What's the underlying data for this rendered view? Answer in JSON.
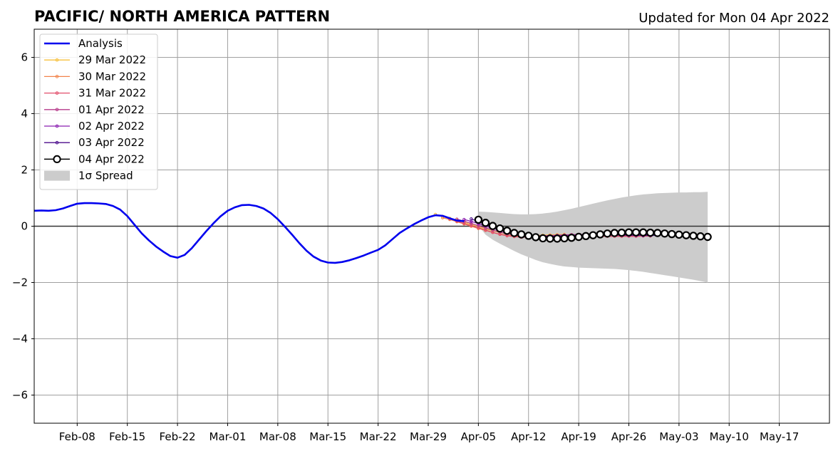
{
  "chart_data": {
    "type": "line",
    "title": "PACIFIC/ NORTH AMERICA PATTERN",
    "subtitle": "Updated for Mon 04 Apr 2022",
    "xlabel": "",
    "ylabel": "",
    "xlim": [
      "2022-02-02",
      "2022-05-24"
    ],
    "ylim": [
      -7,
      7
    ],
    "x_ticks": [
      {
        "date": "2022-02-08",
        "label": "Feb-08"
      },
      {
        "date": "2022-02-15",
        "label": "Feb-15"
      },
      {
        "date": "2022-02-22",
        "label": "Feb-22"
      },
      {
        "date": "2022-03-01",
        "label": "Mar-01"
      },
      {
        "date": "2022-03-08",
        "label": "Mar-08"
      },
      {
        "date": "2022-03-15",
        "label": "Mar-15"
      },
      {
        "date": "2022-03-22",
        "label": "Mar-22"
      },
      {
        "date": "2022-03-29",
        "label": "Mar-29"
      },
      {
        "date": "2022-04-05",
        "label": "Apr-05"
      },
      {
        "date": "2022-04-12",
        "label": "Apr-12"
      },
      {
        "date": "2022-04-19",
        "label": "Apr-19"
      },
      {
        "date": "2022-04-26",
        "label": "Apr-26"
      },
      {
        "date": "2022-05-03",
        "label": "May-03"
      },
      {
        "date": "2022-05-10",
        "label": "May-10"
      },
      {
        "date": "2022-05-17",
        "label": "May-17"
      }
    ],
    "y_ticks": [
      {
        "value": 6,
        "label": "6"
      },
      {
        "value": 4,
        "label": "4"
      },
      {
        "value": 2,
        "label": "2"
      },
      {
        "value": 0,
        "label": "0"
      },
      {
        "value": -2,
        "label": "−2"
      },
      {
        "value": -4,
        "label": "−4"
      },
      {
        "value": -6,
        "label": "−6"
      }
    ],
    "grid": true,
    "zero_line": true,
    "legend_position": "top-left",
    "analysis": {
      "name": "Analysis",
      "color": "#0000ee",
      "start": "2022-02-02",
      "values": [
        0.55,
        0.56,
        0.55,
        0.57,
        0.63,
        0.72,
        0.8,
        0.82,
        0.82,
        0.81,
        0.79,
        0.72,
        0.59,
        0.36,
        0.05,
        -0.25,
        -0.5,
        -0.72,
        -0.9,
        -1.06,
        -1.12,
        -1.02,
        -0.78,
        -0.48,
        -0.18,
        0.1,
        0.35,
        0.55,
        0.67,
        0.75,
        0.76,
        0.72,
        0.63,
        0.47,
        0.25,
        -0.02,
        -0.3,
        -0.6,
        -0.87,
        -1.08,
        -1.22,
        -1.29,
        -1.3,
        -1.27,
        -1.21,
        -1.13,
        -1.04,
        -0.94,
        -0.84,
        -0.68,
        -0.46,
        -0.24,
        -0.08,
        0.07,
        0.2,
        0.32,
        0.39,
        0.37,
        0.28,
        0.2,
        0.18
      ]
    },
    "series": [
      {
        "name": "29 Mar 2022",
        "color": "#f7c03c",
        "start": "2022-03-30",
        "values": [
          0.42,
          0.35,
          0.28,
          0.22,
          0.14,
          0.06,
          -0.02,
          -0.1,
          -0.16,
          -0.22,
          -0.27,
          -0.3,
          -0.32,
          -0.33,
          -0.33,
          -0.32,
          -0.31,
          -0.3,
          -0.29
        ]
      },
      {
        "name": "30 Mar 2022",
        "color": "#f2844b",
        "start": "2022-03-31",
        "values": [
          0.3,
          0.24,
          0.16,
          0.08,
          0.0,
          -0.08,
          -0.15,
          -0.22,
          -0.28,
          -0.32,
          -0.35,
          -0.37,
          -0.38,
          -0.37,
          -0.36,
          -0.35,
          -0.34,
          -0.33,
          -0.32
        ]
      },
      {
        "name": "31 Mar 2022",
        "color": "#e24d6a",
        "start": "2022-04-01",
        "values": [
          0.26,
          0.18,
          0.1,
          0.02,
          -0.06,
          -0.14,
          -0.22,
          -0.29,
          -0.34,
          -0.37,
          -0.39,
          -0.39,
          -0.38,
          -0.37,
          -0.36,
          -0.35,
          -0.34,
          -0.34,
          -0.34,
          -0.35,
          -0.35,
          -0.36,
          -0.36,
          -0.36,
          -0.36,
          -0.36,
          -0.36,
          -0.35,
          -0.35
        ]
      },
      {
        "name": "01 Apr 2022",
        "color": "#b63a8a",
        "start": "2022-04-02",
        "values": [
          0.25,
          0.18,
          0.1,
          0.02,
          -0.06,
          -0.14,
          -0.21,
          -0.27,
          -0.31,
          -0.34,
          -0.35,
          -0.35,
          -0.34,
          -0.33,
          -0.32,
          -0.31,
          -0.3,
          -0.29,
          -0.29,
          -0.29,
          -0.3,
          -0.31,
          -0.32,
          -0.33,
          -0.33,
          -0.33,
          -0.33,
          -0.33
        ]
      },
      {
        "name": "02 Apr 2022",
        "color": "#8a1fb0",
        "start": "2022-04-03",
        "values": [
          0.24,
          0.17,
          0.09,
          0.01,
          -0.07,
          -0.15,
          -0.22,
          -0.28,
          -0.32,
          -0.35,
          -0.36,
          -0.36,
          -0.35,
          -0.34,
          -0.33,
          -0.32,
          -0.31,
          -0.3,
          -0.3,
          -0.3,
          -0.3,
          -0.31,
          -0.31,
          -0.32,
          -0.32,
          -0.32,
          -0.32
        ]
      },
      {
        "name": "03 Apr 2022",
        "color": "#4b0c8c",
        "start": "2022-04-04",
        "values": [
          0.26,
          0.16,
          0.07,
          -0.02,
          -0.1,
          -0.17,
          -0.23,
          -0.28,
          -0.32,
          -0.35,
          -0.36,
          -0.37,
          -0.37,
          -0.36,
          -0.35,
          -0.34,
          -0.33,
          -0.32,
          -0.31,
          -0.31,
          -0.31,
          -0.31,
          -0.32,
          -0.32,
          -0.33,
          -0.33,
          -0.33
        ]
      },
      {
        "name": "04 Apr 2022",
        "color": "#000000",
        "marker": "open-circle",
        "start": "2022-04-05",
        "values": [
          0.23,
          0.12,
          0.01,
          -0.08,
          -0.16,
          -0.24,
          -0.29,
          -0.34,
          -0.39,
          -0.43,
          -0.44,
          -0.44,
          -0.43,
          -0.41,
          -0.38,
          -0.35,
          -0.32,
          -0.29,
          -0.26,
          -0.24,
          -0.23,
          -0.22,
          -0.22,
          -0.22,
          -0.23,
          -0.24,
          -0.26,
          -0.28,
          -0.3,
          -0.32,
          -0.34,
          -0.36,
          -0.38
        ]
      }
    ],
    "spread": {
      "name": "1σ Spread",
      "color": "#cccccc",
      "start": "2022-04-05",
      "upper": [
        0.52,
        0.51,
        0.49,
        0.47,
        0.45,
        0.43,
        0.42,
        0.42,
        0.43,
        0.45,
        0.48,
        0.52,
        0.57,
        0.62,
        0.68,
        0.74,
        0.8,
        0.86,
        0.92,
        0.97,
        1.02,
        1.06,
        1.1,
        1.13,
        1.15,
        1.17,
        1.18,
        1.19,
        1.2,
        1.2,
        1.21,
        1.21,
        1.22
      ],
      "lower": [
        0.02,
        -0.3,
        -0.48,
        -0.62,
        -0.75,
        -0.88,
        -1.0,
        -1.1,
        -1.2,
        -1.28,
        -1.34,
        -1.39,
        -1.43,
        -1.45,
        -1.47,
        -1.48,
        -1.49,
        -1.5,
        -1.51,
        -1.52,
        -1.54,
        -1.56,
        -1.59,
        -1.62,
        -1.66,
        -1.7,
        -1.74,
        -1.78,
        -1.82,
        -1.86,
        -1.9,
        -1.95,
        -2.0
      ]
    }
  }
}
